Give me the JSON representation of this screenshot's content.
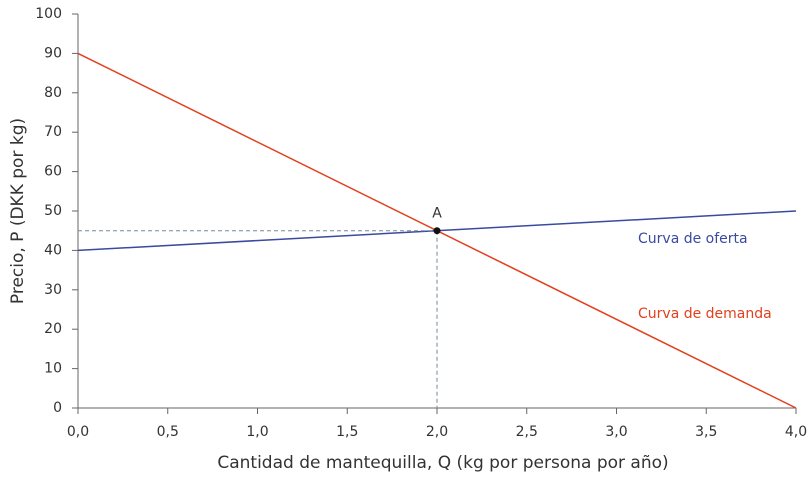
{
  "chart_data": {
    "type": "line",
    "xlabel": "Cantidad de mantequilla, Q (kg por persona por año)",
    "ylabel": "Precio, P (DKK por kg)",
    "x": [
      0,
      4
    ],
    "series": [
      {
        "name": "Curva de oferta",
        "color": "#3a4aa0",
        "values": [
          40,
          50
        ]
      },
      {
        "name": "Curva de demanda",
        "color": "#e2401f",
        "values": [
          90,
          0
        ]
      }
    ],
    "points": [
      {
        "label": "A",
        "x": 2,
        "y": 45
      }
    ],
    "xlim": [
      0,
      4
    ],
    "ylim": [
      0,
      100
    ],
    "xticks": [
      {
        "value": 0,
        "label": "0,0"
      },
      {
        "value": 0.5,
        "label": "0,5"
      },
      {
        "value": 1,
        "label": "1,0"
      },
      {
        "value": 1.5,
        "label": "1,5"
      },
      {
        "value": 2,
        "label": "2,0"
      },
      {
        "value": 2.5,
        "label": "2,5"
      },
      {
        "value": 3,
        "label": "3,0"
      },
      {
        "value": 3.5,
        "label": "3,5"
      },
      {
        "value": 4,
        "label": "4,0"
      }
    ],
    "yticks": [
      0,
      10,
      20,
      30,
      40,
      50,
      60,
      70,
      80,
      90,
      100
    ],
    "grid": false
  }
}
